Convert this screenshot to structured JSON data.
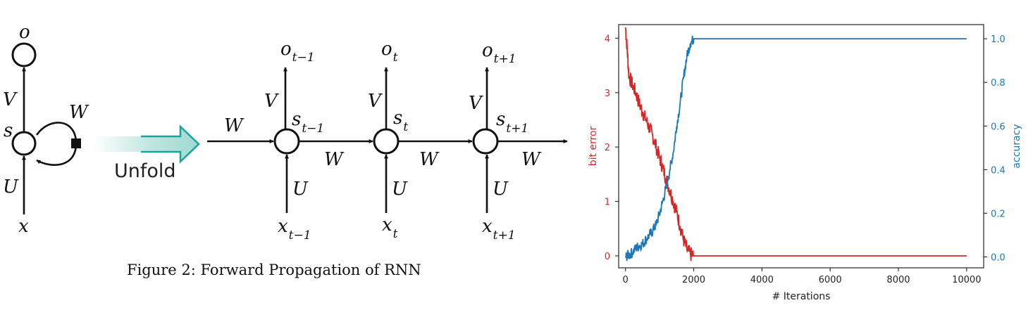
{
  "diagram": {
    "labels": {
      "o": "o",
      "V": "V",
      "W": "W",
      "s": "s",
      "U": "U",
      "x": "x",
      "o_prev": "o",
      "o_prev_sub": "t−1",
      "o_cur": "o",
      "o_cur_sub": "t",
      "o_next": "o",
      "o_next_sub": "t+1",
      "s_prev": "s",
      "s_prev_sub": "t−1",
      "s_cur": "s",
      "s_cur_sub": "t",
      "s_next": "s",
      "s_next_sub": "t+1",
      "x_prev": "x",
      "x_prev_sub": "t−1",
      "x_cur": "x",
      "x_cur_sub": "t",
      "x_next": "x",
      "x_next_sub": "t+1",
      "W_in": "W",
      "W_1": "W",
      "W_2": "W",
      "W_3": "W",
      "V_1": "V",
      "V_2": "V",
      "V_3": "V",
      "U_1": "U",
      "U_2": "U",
      "U_3": "U"
    },
    "unfold_label": "Unfold",
    "arrow_color": "#1aa39a",
    "caption": "Figure 2: Forward Propagation of RNN"
  },
  "chart_data": {
    "type": "line",
    "xlabel": "# Iterations",
    "xlim": [
      -200,
      10500
    ],
    "xticks": [
      0,
      2000,
      4000,
      6000,
      8000,
      10000
    ],
    "left_axis": {
      "label": "bit error",
      "color": "#d62728",
      "ylim": [
        -0.22,
        4.25
      ],
      "ticks": [
        0,
        1,
        2,
        3,
        4
      ]
    },
    "right_axis": {
      "label": "accuracy",
      "color": "#1f77b4",
      "ylim": [
        -0.05,
        1.065
      ],
      "ticks": [
        "0.0",
        "0.2",
        "0.4",
        "0.6",
        "0.8",
        "1.0"
      ]
    },
    "series": [
      {
        "name": "bit error",
        "axis": "left",
        "color": "#d62728",
        "x": [
          0,
          50,
          100,
          200,
          300,
          400,
          500,
          600,
          700,
          800,
          900,
          1000,
          1100,
          1200,
          1300,
          1400,
          1500,
          1600,
          1700,
          1800,
          1900,
          2000,
          2100,
          3000,
          4000,
          5000,
          6000,
          7000,
          8000,
          9000,
          10000
        ],
        "y": [
          4.2,
          3.8,
          3.3,
          3.15,
          3.0,
          2.8,
          2.65,
          2.5,
          2.35,
          2.2,
          2.0,
          1.8,
          1.6,
          1.4,
          1.2,
          1.0,
          0.8,
          0.55,
          0.3,
          0.12,
          0.03,
          0.0,
          0.0,
          0.0,
          0.0,
          0.0,
          0.0,
          0.0,
          0.0,
          0.0,
          0.0
        ]
      },
      {
        "name": "accuracy",
        "axis": "right",
        "color": "#1f77b4",
        "x": [
          0,
          100,
          200,
          300,
          400,
          500,
          600,
          700,
          800,
          900,
          1000,
          1100,
          1200,
          1300,
          1400,
          1500,
          1600,
          1700,
          1800,
          1900,
          2000,
          2100,
          3000,
          4000,
          5000,
          6000,
          7000,
          8000,
          9000,
          10000
        ],
        "y": [
          0.0,
          0.01,
          0.02,
          0.04,
          0.05,
          0.06,
          0.08,
          0.1,
          0.12,
          0.15,
          0.2,
          0.26,
          0.32,
          0.4,
          0.48,
          0.6,
          0.7,
          0.82,
          0.92,
          0.98,
          1.0,
          1.0,
          1.0,
          1.0,
          1.0,
          1.0,
          1.0,
          1.0,
          1.0,
          1.0
        ]
      }
    ]
  }
}
